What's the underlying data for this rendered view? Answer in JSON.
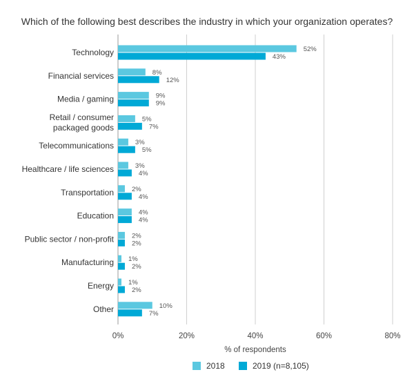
{
  "chart_data": {
    "type": "bar",
    "orientation": "horizontal",
    "title": "Which of the following best describes the industry in which your organization operates?",
    "xlabel": "% of respondents",
    "ylabel": "",
    "xlim": [
      0,
      80
    ],
    "xticks": [
      "0%",
      "20%",
      "40%",
      "60%",
      "80%"
    ],
    "xtick_values": [
      0,
      20,
      40,
      60,
      80
    ],
    "grid": true,
    "legend_position": "bottom-center",
    "categories": [
      [
        "Technology"
      ],
      [
        "Financial services"
      ],
      [
        "Media / gaming"
      ],
      [
        "Retail / consumer",
        "packaged goods"
      ],
      [
        "Telecommunications"
      ],
      [
        "Healthcare / life sciences"
      ],
      [
        "Transportation"
      ],
      [
        "Education"
      ],
      [
        "Public sector / non-profit"
      ],
      [
        "Manufacturing"
      ],
      [
        "Energy"
      ],
      [
        "Other"
      ]
    ],
    "series": [
      {
        "name": "2018",
        "color": "#5bc8e0",
        "values": [
          52,
          8,
          9,
          5,
          3,
          3,
          2,
          4,
          2,
          1,
          1,
          10
        ],
        "labels": [
          "52%",
          "8%",
          "9%",
          "5%",
          "3%",
          "3%",
          "2%",
          "4%",
          "2%",
          "1%",
          "1%",
          "10%"
        ]
      },
      {
        "name": "2019 (n=8,105)",
        "color": "#00a9d6",
        "values": [
          43,
          12,
          9,
          7,
          5,
          4,
          4,
          4,
          2,
          2,
          2,
          7
        ],
        "labels": [
          "43%",
          "12%",
          "9%",
          "7%",
          "5%",
          "4%",
          "4%",
          "4%",
          "2%",
          "2%",
          "2%",
          "7%"
        ]
      }
    ]
  }
}
